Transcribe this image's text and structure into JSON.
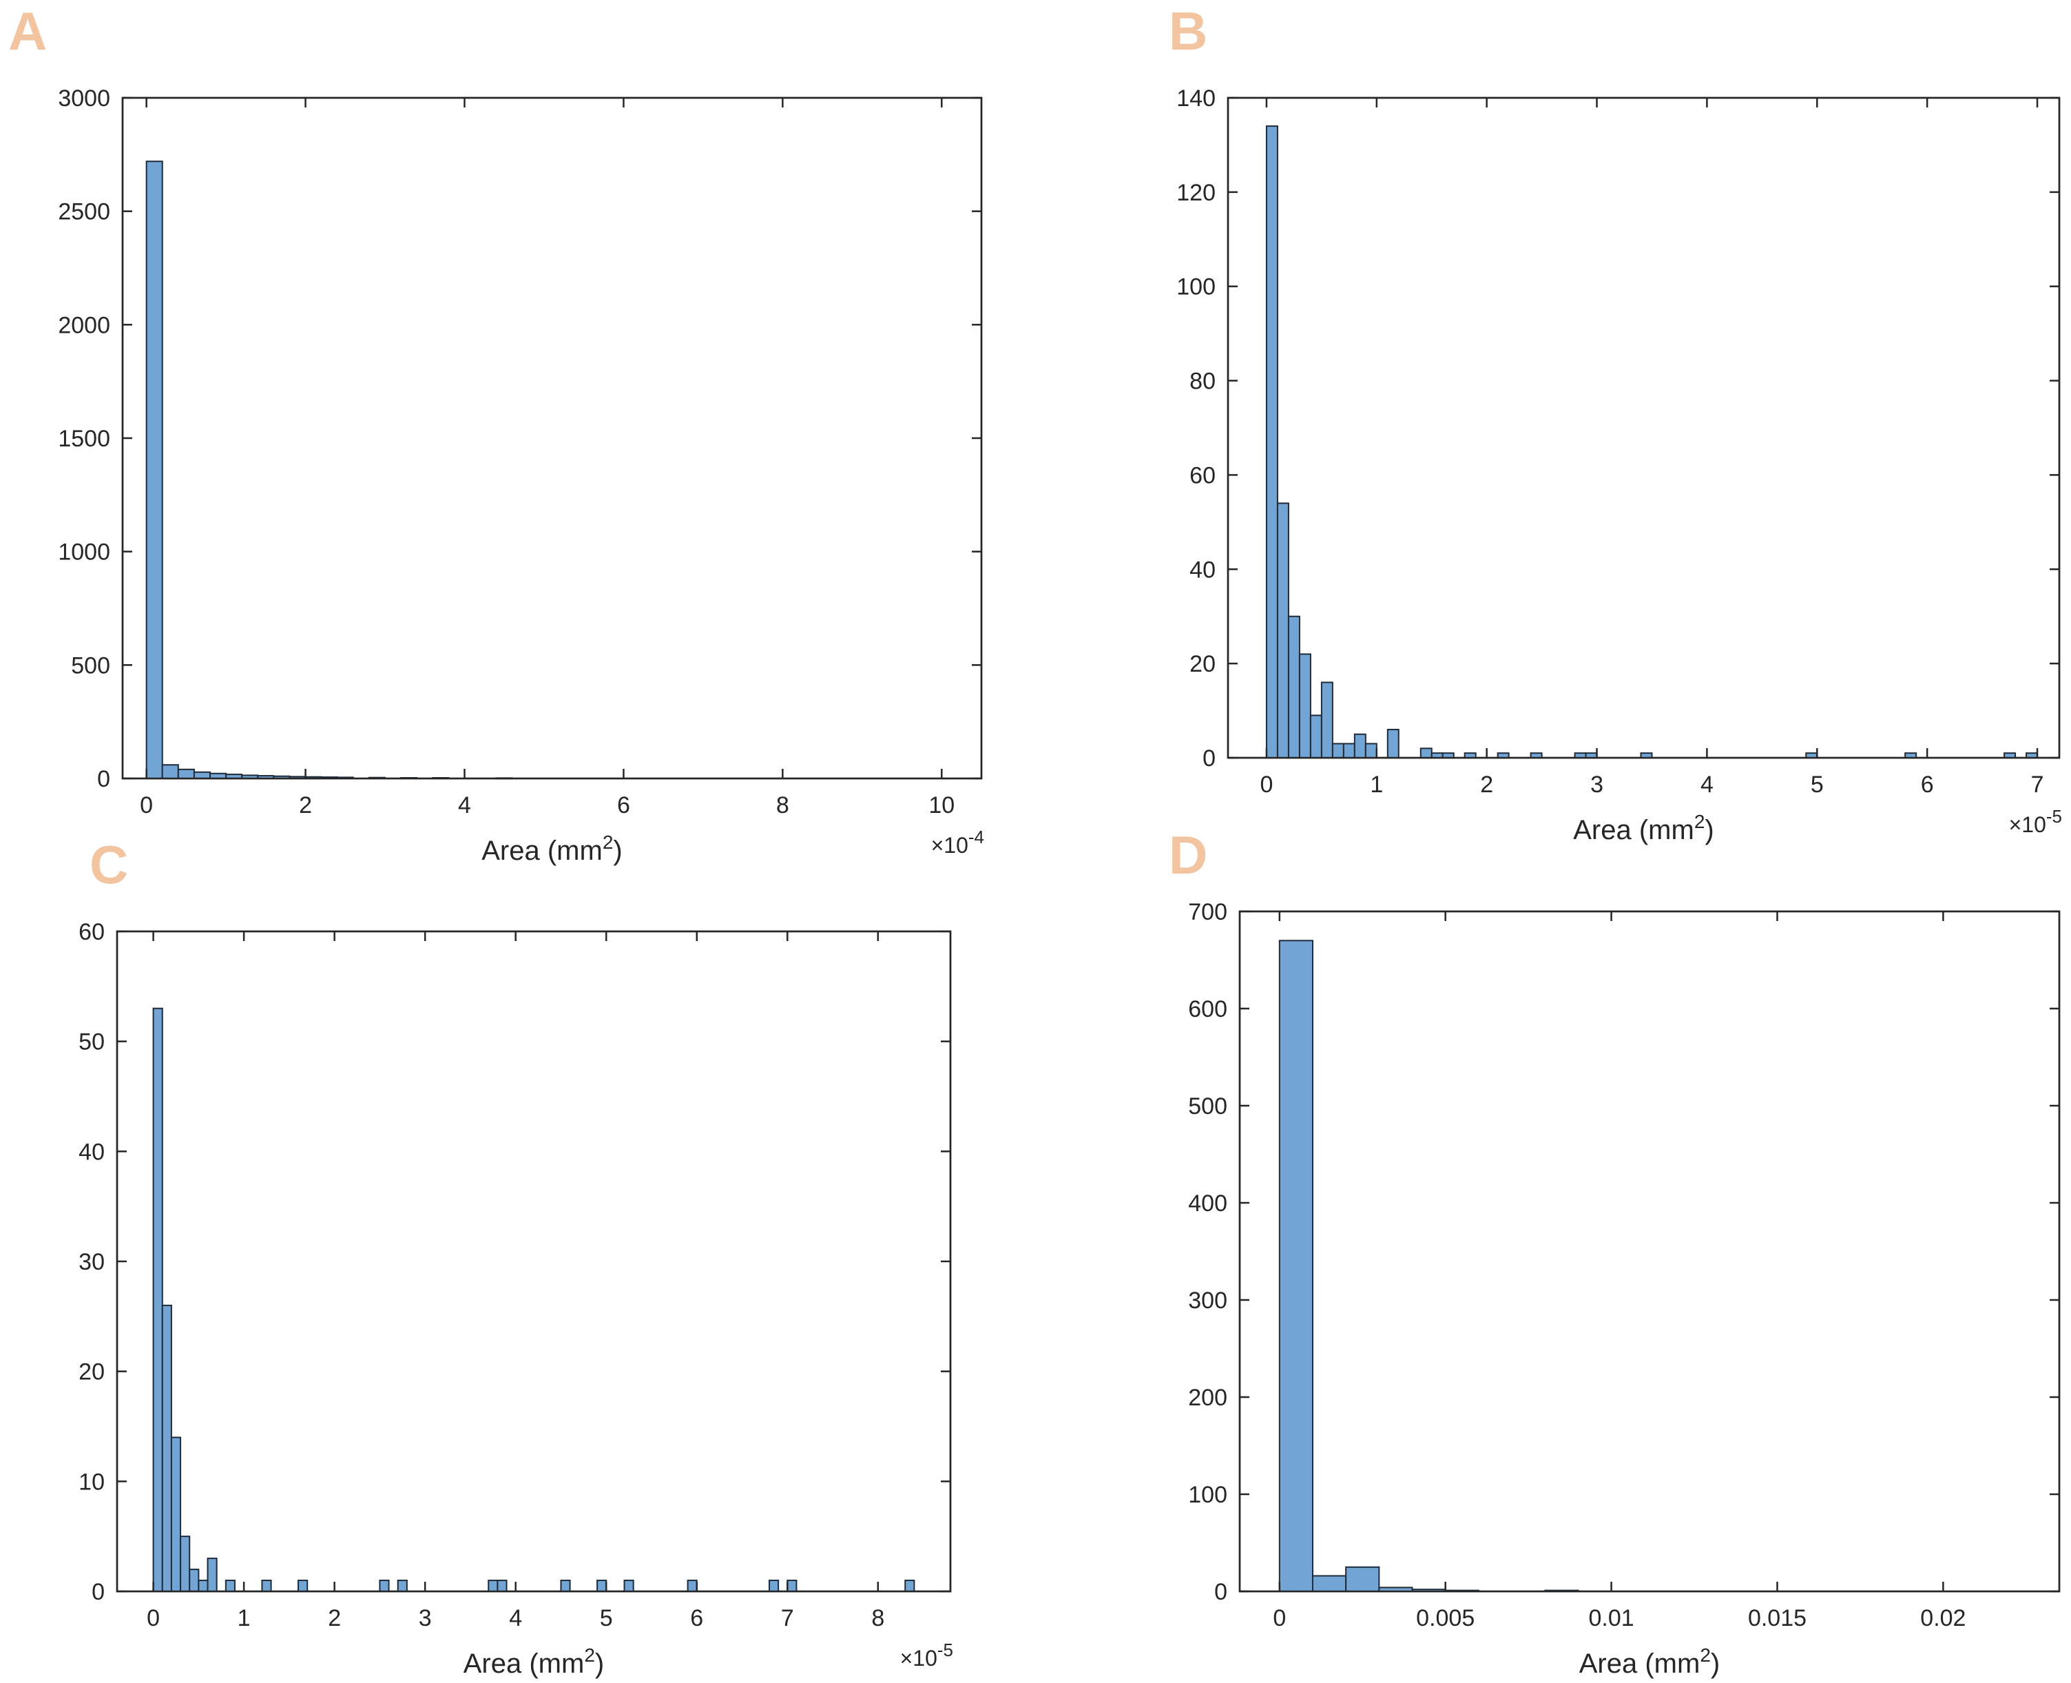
{
  "colors": {
    "panel_letter": "#f2c4a0",
    "bar_fill": "#72a4d4",
    "bar_edge": "#1f2b38",
    "axes": "#262626"
  },
  "chart_data": [
    {
      "panel": "A",
      "type": "bar",
      "xlabel": "Area (mm",
      "xlabel_sup": "2",
      "xlabel_close": ")",
      "x_exponent_base": "×10",
      "x_exponent": "-4",
      "xlim": [
        -0.3,
        10.5
      ],
      "ylim": [
        0,
        3000
      ],
      "xticks": [
        0,
        2,
        4,
        6,
        8,
        10
      ],
      "xtick_labels": [
        "0",
        "2",
        "4",
        "6",
        "8",
        "10"
      ],
      "yticks": [
        0,
        500,
        1000,
        1500,
        2000,
        2500,
        3000
      ],
      "ytick_labels": [
        "0",
        "500",
        "1000",
        "1500",
        "2000",
        "2500",
        "3000"
      ],
      "bin_width": 0.2,
      "bins": [
        [
          0.0,
          2720
        ],
        [
          0.2,
          60
        ],
        [
          0.4,
          40
        ],
        [
          0.6,
          28
        ],
        [
          0.8,
          22
        ],
        [
          1.0,
          18
        ],
        [
          1.2,
          14
        ],
        [
          1.4,
          12
        ],
        [
          1.6,
          10
        ],
        [
          1.8,
          8
        ],
        [
          2.0,
          7
        ],
        [
          2.2,
          6
        ],
        [
          2.4,
          5
        ],
        [
          2.8,
          4
        ],
        [
          3.2,
          3
        ],
        [
          3.6,
          3
        ],
        [
          4.4,
          2
        ]
      ],
      "grid": false
    },
    {
      "panel": "B",
      "type": "bar",
      "xlabel": "Area (mm",
      "xlabel_sup": "2",
      "xlabel_close": ")",
      "x_exponent_base": "×10",
      "x_exponent": "-5",
      "xlim": [
        -0.35,
        7.2
      ],
      "ylim": [
        0,
        140
      ],
      "xticks": [
        0,
        1,
        2,
        3,
        4,
        5,
        6,
        7
      ],
      "xtick_labels": [
        "0",
        "1",
        "2",
        "3",
        "4",
        "5",
        "6",
        "7"
      ],
      "yticks": [
        0,
        20,
        40,
        60,
        80,
        100,
        120,
        140
      ],
      "ytick_labels": [
        "0",
        "20",
        "40",
        "60",
        "80",
        "100",
        "120",
        "140"
      ],
      "bin_width": 0.1,
      "bins": [
        [
          0.0,
          134
        ],
        [
          0.1,
          54
        ],
        [
          0.2,
          30
        ],
        [
          0.3,
          22
        ],
        [
          0.4,
          9
        ],
        [
          0.5,
          16
        ],
        [
          0.6,
          3
        ],
        [
          0.7,
          3
        ],
        [
          0.8,
          5
        ],
        [
          0.9,
          3
        ],
        [
          1.1,
          6
        ],
        [
          1.4,
          2
        ],
        [
          1.5,
          1
        ],
        [
          1.6,
          1
        ],
        [
          1.8,
          1
        ],
        [
          2.1,
          1
        ],
        [
          2.4,
          1
        ],
        [
          2.8,
          1
        ],
        [
          2.9,
          1
        ],
        [
          3.4,
          1
        ],
        [
          4.9,
          1
        ],
        [
          5.8,
          1
        ],
        [
          6.7,
          1
        ],
        [
          6.9,
          1
        ]
      ],
      "grid": false
    },
    {
      "panel": "C",
      "type": "bar",
      "xlabel": "Area (mm",
      "xlabel_sup": "2",
      "xlabel_close": ")",
      "x_exponent_base": "×10",
      "x_exponent": "-5",
      "xlim": [
        -0.4,
        8.8
      ],
      "ylim": [
        0,
        60
      ],
      "xticks": [
        0,
        1,
        2,
        3,
        4,
        5,
        6,
        7,
        8
      ],
      "xtick_labels": [
        "0",
        "1",
        "2",
        "3",
        "4",
        "5",
        "6",
        "7",
        "8"
      ],
      "yticks": [
        0,
        10,
        20,
        30,
        40,
        50,
        60
      ],
      "ytick_labels": [
        "0",
        "10",
        "20",
        "30",
        "40",
        "50",
        "60"
      ],
      "bin_width": 0.1,
      "bins": [
        [
          0.0,
          53
        ],
        [
          0.1,
          26
        ],
        [
          0.2,
          14
        ],
        [
          0.3,
          5
        ],
        [
          0.4,
          2
        ],
        [
          0.5,
          1
        ],
        [
          0.6,
          3
        ],
        [
          0.8,
          1
        ],
        [
          1.2,
          1
        ],
        [
          1.6,
          1
        ],
        [
          2.5,
          1
        ],
        [
          2.7,
          1
        ],
        [
          3.7,
          1
        ],
        [
          3.8,
          1
        ],
        [
          4.5,
          1
        ],
        [
          4.9,
          1
        ],
        [
          5.2,
          1
        ],
        [
          5.9,
          1
        ],
        [
          6.8,
          1
        ],
        [
          7.0,
          1
        ],
        [
          8.3,
          1
        ]
      ],
      "grid": false
    },
    {
      "panel": "D",
      "type": "bar",
      "xlabel": "Area (mm",
      "xlabel_sup": "2",
      "xlabel_close": ")",
      "x_exponent_base": "",
      "x_exponent": "",
      "xlim": [
        -0.0012,
        0.0235
      ],
      "ylim": [
        0,
        700
      ],
      "xticks": [
        0,
        0.005,
        0.01,
        0.015,
        0.02
      ],
      "xtick_labels": [
        "0",
        "0.005",
        "0.01",
        "0.015",
        "0.02"
      ],
      "yticks": [
        0,
        100,
        200,
        300,
        400,
        500,
        600,
        700
      ],
      "ytick_labels": [
        "0",
        "100",
        "200",
        "300",
        "400",
        "500",
        "600",
        "700"
      ],
      "bin_width": 0.001,
      "bins": [
        [
          0.0,
          670
        ],
        [
          0.001,
          16
        ],
        [
          0.002,
          25
        ],
        [
          0.003,
          4
        ],
        [
          0.004,
          2
        ],
        [
          0.005,
          1
        ],
        [
          0.008,
          1
        ]
      ],
      "grid": false
    }
  ]
}
